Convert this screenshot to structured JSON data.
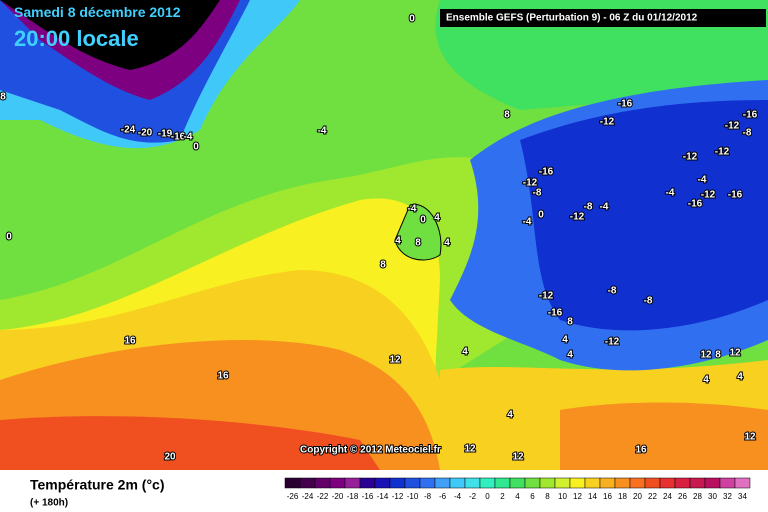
{
  "header": {
    "date": "Samedi 8 décembre 2012",
    "time": "20:00 locale"
  },
  "info": "Ensemble GEFS (Perturbation 9)  -  06 Z du 01/12/2012",
  "copyright": "Copyright © 2012 Meteociel.fr",
  "legend": {
    "title": "Température 2m (°c)",
    "subtitle": "(+ 180h)",
    "ticks": [
      -26,
      -24,
      -22,
      -20,
      -18,
      -16,
      -14,
      -12,
      -10,
      -8,
      -6,
      -4,
      -2,
      0,
      2,
      4,
      6,
      8,
      10,
      12,
      14,
      16,
      18,
      20,
      22,
      24,
      26,
      28,
      30,
      32,
      34
    ],
    "colors": [
      "#2a0030",
      "#44004c",
      "#600068",
      "#7c0080",
      "#96209a",
      "#2a0094",
      "#1a10b4",
      "#1030d0",
      "#2050e0",
      "#3070f0",
      "#40a0f8",
      "#40c8f8",
      "#40e0e8",
      "#30f0c0",
      "#30e890",
      "#40e060",
      "#70e040",
      "#a0e830",
      "#d0f030",
      "#f8f020",
      "#f8d020",
      "#f8b020",
      "#f89020",
      "#f87020",
      "#f05020",
      "#e83030",
      "#d82040",
      "#c81850",
      "#b81060",
      "#d040a0",
      "#e070c0"
    ]
  },
  "contour_labels": [
    0,
    8,
    -24,
    -20,
    -19,
    -16,
    -4,
    0,
    -4,
    8,
    -16,
    -12,
    -12,
    -16,
    -8,
    -16,
    -12,
    -12,
    -12,
    -8,
    -4,
    -4,
    -16,
    -12,
    -16,
    -12,
    -8,
    -4,
    0,
    -4,
    -4,
    0,
    4,
    4,
    8,
    4,
    8,
    0,
    -12,
    -8,
    -8,
    -16,
    8,
    -12,
    4,
    4,
    4,
    12,
    16,
    16,
    12,
    8,
    12,
    4,
    4,
    4,
    12,
    12,
    16,
    12,
    20
  ]
}
